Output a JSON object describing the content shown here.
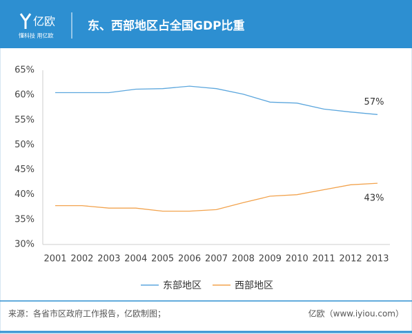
{
  "header": {
    "logo": "亿欧",
    "slogan": "懂科技 用亿欧"
  },
  "chart_data": {
    "type": "line",
    "title": "东、西部地区占全国GDP比重",
    "categories": [
      "2001",
      "2002",
      "2003",
      "2004",
      "2005",
      "2006",
      "2007",
      "2008",
      "2009",
      "2010",
      "2011",
      "2012",
      "2013"
    ],
    "series": [
      {
        "name": "东部地区",
        "color": "#5ba6dd",
        "values": [
          60.5,
          60.5,
          60.5,
          61.2,
          61.3,
          61.8,
          61.3,
          60.2,
          58.6,
          58.4,
          57.2,
          56.6,
          56.1
        ]
      },
      {
        "name": "西部地区",
        "color": "#f2a24c",
        "values": [
          37.8,
          37.8,
          37.3,
          37.3,
          36.7,
          36.7,
          37.0,
          38.4,
          39.7,
          40.0,
          41.0,
          42.0,
          42.3
        ]
      }
    ],
    "annotations": [
      "57%",
      "43%"
    ],
    "ylim": [
      30,
      65
    ],
    "yticks": [
      {
        "value": 30,
        "label": "30%"
      },
      {
        "value": 35,
        "label": "35%"
      },
      {
        "value": 40,
        "label": "40%"
      },
      {
        "value": 45,
        "label": "45%"
      },
      {
        "value": 50,
        "label": "50%"
      },
      {
        "value": 55,
        "label": "55%"
      },
      {
        "value": 60,
        "label": "60%"
      },
      {
        "value": 65,
        "label": "65%"
      }
    ],
    "grid": false,
    "legend": "bottom"
  },
  "footer": {
    "source": "来源：各省市区政府工作报告，亿欧制图；",
    "credit": "亿欧（www.iyiou.com）"
  }
}
